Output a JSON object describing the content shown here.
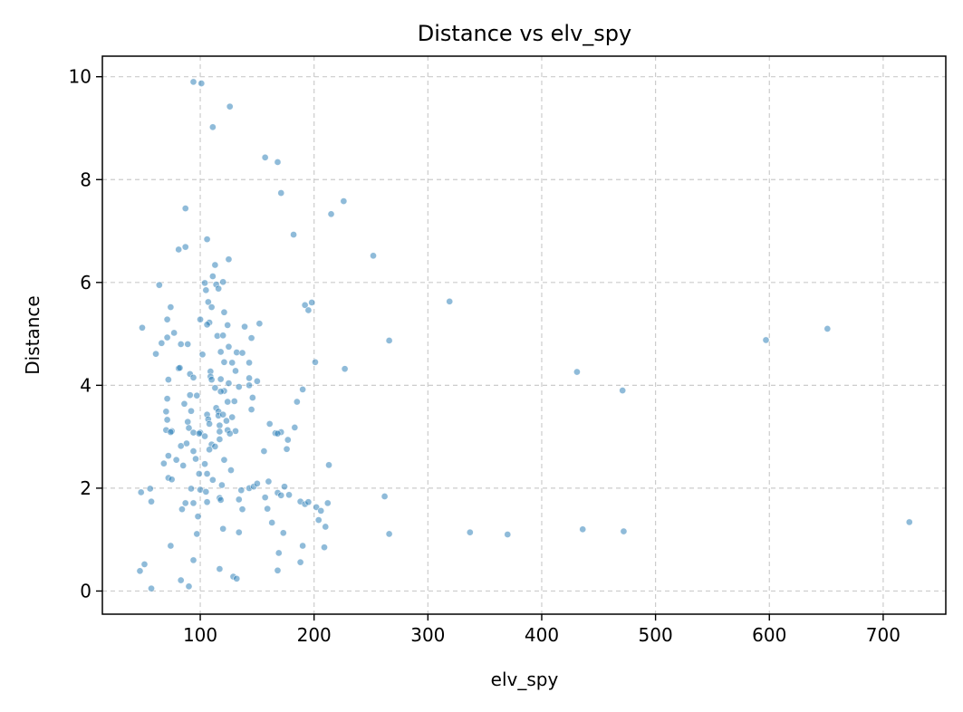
{
  "chart_data": {
    "type": "scatter",
    "title": "Distance vs elv_spy",
    "xlabel": "elv_spy",
    "ylabel": "Distance",
    "xlim": [
      14,
      755
    ],
    "ylim": [
      -0.45,
      10.4
    ],
    "xticks": [
      100,
      200,
      300,
      400,
      500,
      600,
      700
    ],
    "yticks": [
      0,
      2,
      4,
      6,
      8,
      10
    ],
    "grid": true,
    "legend": "none",
    "point_color": "#1f77b4",
    "point_alpha": 0.5,
    "grid_color": "#cccccc",
    "series": [
      {
        "points": [
          [
            94,
            9.9
          ],
          [
            101,
            9.87
          ],
          [
            126,
            9.42
          ],
          [
            111,
            9.02
          ],
          [
            157,
            8.43
          ],
          [
            168,
            8.34
          ],
          [
            171,
            7.74
          ],
          [
            226,
            7.58
          ],
          [
            215,
            7.33
          ],
          [
            87,
            7.44
          ],
          [
            182,
            6.93
          ],
          [
            106,
            6.84
          ],
          [
            87,
            6.69
          ],
          [
            81,
            6.64
          ],
          [
            125,
            6.45
          ],
          [
            252,
            6.52
          ],
          [
            113,
            6.34
          ],
          [
            111,
            6.12
          ],
          [
            114,
            5.96
          ],
          [
            120,
            6.01
          ],
          [
            104,
            5.99
          ],
          [
            64,
            5.95
          ],
          [
            105,
            5.85
          ],
          [
            116,
            5.88
          ],
          [
            319,
            5.63
          ],
          [
            107,
            5.62
          ],
          [
            198,
            5.61
          ],
          [
            192,
            5.56
          ],
          [
            195,
            5.46
          ],
          [
            74,
            5.52
          ],
          [
            110,
            5.52
          ],
          [
            121,
            5.42
          ],
          [
            49,
            5.12
          ],
          [
            71,
            5.28
          ],
          [
            100,
            5.28
          ],
          [
            108,
            5.22
          ],
          [
            106,
            5.18
          ],
          [
            124,
            5.17
          ],
          [
            139,
            5.14
          ],
          [
            152,
            5.2
          ],
          [
            77,
            5.02
          ],
          [
            115,
            4.96
          ],
          [
            120,
            4.97
          ],
          [
            145,
            4.92
          ],
          [
            266,
            4.87
          ],
          [
            66,
            4.82
          ],
          [
            83,
            4.8
          ],
          [
            89,
            4.8
          ],
          [
            71,
            4.93
          ],
          [
            125,
            4.75
          ],
          [
            132,
            4.64
          ],
          [
            137,
            4.63
          ],
          [
            61,
            4.61
          ],
          [
            102,
            4.6
          ],
          [
            118,
            4.65
          ],
          [
            121,
            4.45
          ],
          [
            128,
            4.44
          ],
          [
            143,
            4.44
          ],
          [
            201,
            4.45
          ],
          [
            227,
            4.32
          ],
          [
            431,
            4.26
          ],
          [
            81,
            4.33
          ],
          [
            82,
            4.34
          ],
          [
            109,
            4.27
          ],
          [
            131,
            4.28
          ],
          [
            91,
            4.22
          ],
          [
            109,
            4.17
          ],
          [
            94,
            4.15
          ],
          [
            118,
            4.12
          ],
          [
            110,
            4.11
          ],
          [
            72,
            4.11
          ],
          [
            150,
            4.08
          ],
          [
            143,
            4.14
          ],
          [
            125,
            4.04
          ],
          [
            143,
            4.0
          ],
          [
            134,
            3.97
          ],
          [
            121,
            3.89
          ],
          [
            113,
            3.95
          ],
          [
            118,
            3.88
          ],
          [
            190,
            3.92
          ],
          [
            471,
            3.9
          ],
          [
            71,
            3.74
          ],
          [
            91,
            3.81
          ],
          [
            97,
            3.8
          ],
          [
            130,
            3.69
          ],
          [
            146,
            3.76
          ],
          [
            124,
            3.68
          ],
          [
            114,
            3.56
          ],
          [
            116,
            3.49
          ],
          [
            70,
            3.49
          ],
          [
            86,
            3.64
          ],
          [
            92,
            3.5
          ],
          [
            106,
            3.43
          ],
          [
            116,
            3.41
          ],
          [
            120,
            3.43
          ],
          [
            145,
            3.53
          ],
          [
            185,
            3.68
          ],
          [
            71,
            3.33
          ],
          [
            107,
            3.34
          ],
          [
            123,
            3.31
          ],
          [
            128,
            3.38
          ],
          [
            89,
            3.29
          ],
          [
            108,
            3.25
          ],
          [
            117,
            3.22
          ],
          [
            161,
            3.25
          ],
          [
            70,
            3.13
          ],
          [
            75,
            3.11
          ],
          [
            90,
            3.17
          ],
          [
            100,
            3.08
          ],
          [
            117,
            3.1
          ],
          [
            124,
            3.13
          ],
          [
            131,
            3.11
          ],
          [
            166,
            3.07
          ],
          [
            171,
            3.09
          ],
          [
            177,
            2.94
          ],
          [
            183,
            3.18
          ],
          [
            74,
            3.09
          ],
          [
            94,
            3.08
          ],
          [
            99,
            3.06
          ],
          [
            104,
            3.01
          ],
          [
            117,
            2.95
          ],
          [
            126,
            3.06
          ],
          [
            168,
            3.06
          ],
          [
            88,
            2.87
          ],
          [
            83,
            2.82
          ],
          [
            110,
            2.85
          ],
          [
            113,
            2.81
          ],
          [
            176,
            2.76
          ],
          [
            156,
            2.72
          ],
          [
            72,
            2.63
          ],
          [
            94,
            2.72
          ],
          [
            108,
            2.75
          ],
          [
            79,
            2.55
          ],
          [
            68,
            2.48
          ],
          [
            85,
            2.44
          ],
          [
            104,
            2.47
          ],
          [
            96,
            2.57
          ],
          [
            121,
            2.55
          ],
          [
            213,
            2.45
          ],
          [
            106,
            2.28
          ],
          [
            99,
            2.28
          ],
          [
            127,
            2.35
          ],
          [
            72,
            2.2
          ],
          [
            75,
            2.17
          ],
          [
            111,
            2.16
          ],
          [
            119,
            2.06
          ],
          [
            143,
            2.0
          ],
          [
            147,
            2.03
          ],
          [
            150,
            2.09
          ],
          [
            160,
            2.13
          ],
          [
            174,
            2.03
          ],
          [
            48,
            1.92
          ],
          [
            56,
            1.99
          ],
          [
            92,
            1.99
          ],
          [
            100,
            1.97
          ],
          [
            105,
            1.93
          ],
          [
            136,
            1.96
          ],
          [
            168,
            1.91
          ],
          [
            171,
            1.86
          ],
          [
            178,
            1.87
          ],
          [
            262,
            1.84
          ],
          [
            57,
            1.74
          ],
          [
            87,
            1.71
          ],
          [
            94,
            1.71
          ],
          [
            106,
            1.73
          ],
          [
            117,
            1.81
          ],
          [
            118,
            1.77
          ],
          [
            134,
            1.78
          ],
          [
            157,
            1.82
          ],
          [
            188,
            1.74
          ],
          [
            192,
            1.69
          ],
          [
            195,
            1.73
          ],
          [
            212,
            1.71
          ],
          [
            202,
            1.63
          ],
          [
            206,
            1.56
          ],
          [
            84,
            1.59
          ],
          [
            137,
            1.59
          ],
          [
            159,
            1.6
          ],
          [
            98,
            1.45
          ],
          [
            163,
            1.33
          ],
          [
            723,
            1.34
          ],
          [
            204,
            1.38
          ],
          [
            210,
            1.25
          ],
          [
            120,
            1.21
          ],
          [
            97,
            1.11
          ],
          [
            134,
            1.14
          ],
          [
            173,
            1.13
          ],
          [
            266,
            1.11
          ],
          [
            337,
            1.14
          ],
          [
            370,
            1.1
          ],
          [
            436,
            1.2
          ],
          [
            472,
            1.16
          ],
          [
            74,
            0.88
          ],
          [
            190,
            0.88
          ],
          [
            209,
            0.85
          ],
          [
            169,
            0.74
          ],
          [
            94,
            0.6
          ],
          [
            188,
            0.56
          ],
          [
            51,
            0.52
          ],
          [
            47,
            0.39
          ],
          [
            117,
            0.43
          ],
          [
            168,
            0.4
          ],
          [
            129,
            0.28
          ],
          [
            132,
            0.24
          ],
          [
            83,
            0.21
          ],
          [
            90,
            0.09
          ],
          [
            57,
            0.05
          ],
          [
            597,
            4.88
          ],
          [
            651,
            5.1
          ]
        ]
      }
    ]
  }
}
